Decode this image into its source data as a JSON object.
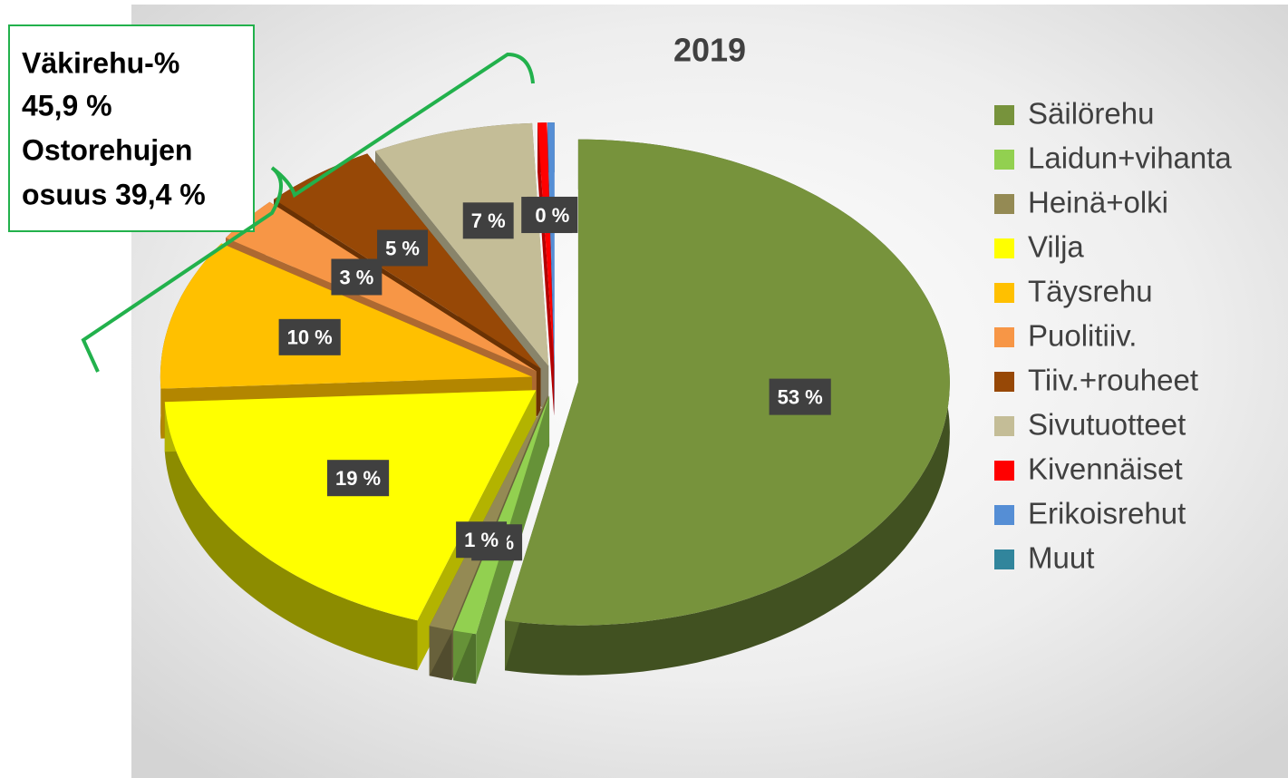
{
  "chart_data": {
    "type": "pie3d",
    "title": "2019",
    "categories": [
      "Säilörehu",
      "Laidun+vihanta",
      "Heinä+olki",
      "Vilja",
      "Täysrehu",
      "Puolitiiv.",
      "Tiiv.+rouheet",
      "Sivutuotteet",
      "Kivennäiset",
      "Erikoisrehut",
      "Muut"
    ],
    "values": [
      53,
      1,
      1,
      19,
      10,
      3,
      5,
      7,
      0.4,
      0.3,
      0
    ],
    "value_labels": [
      "53 %",
      "1 %",
      "1 %",
      "19 %",
      "10 %",
      "3 %",
      "5 %",
      "7 %",
      "0 %",
      "0 %",
      null
    ],
    "colors": [
      "#77933c",
      "#92d050",
      "#948a54",
      "#ffff00",
      "#ffc000",
      "#f79646",
      "#974806",
      "#c4bd97",
      "#ff0000",
      "#558ed5",
      "#31859c"
    ],
    "legend": "right",
    "annotation": [
      "Väkirehu-%",
      "45,9 %",
      "Ostorehujen",
      "osuus 39,4 %"
    ]
  }
}
